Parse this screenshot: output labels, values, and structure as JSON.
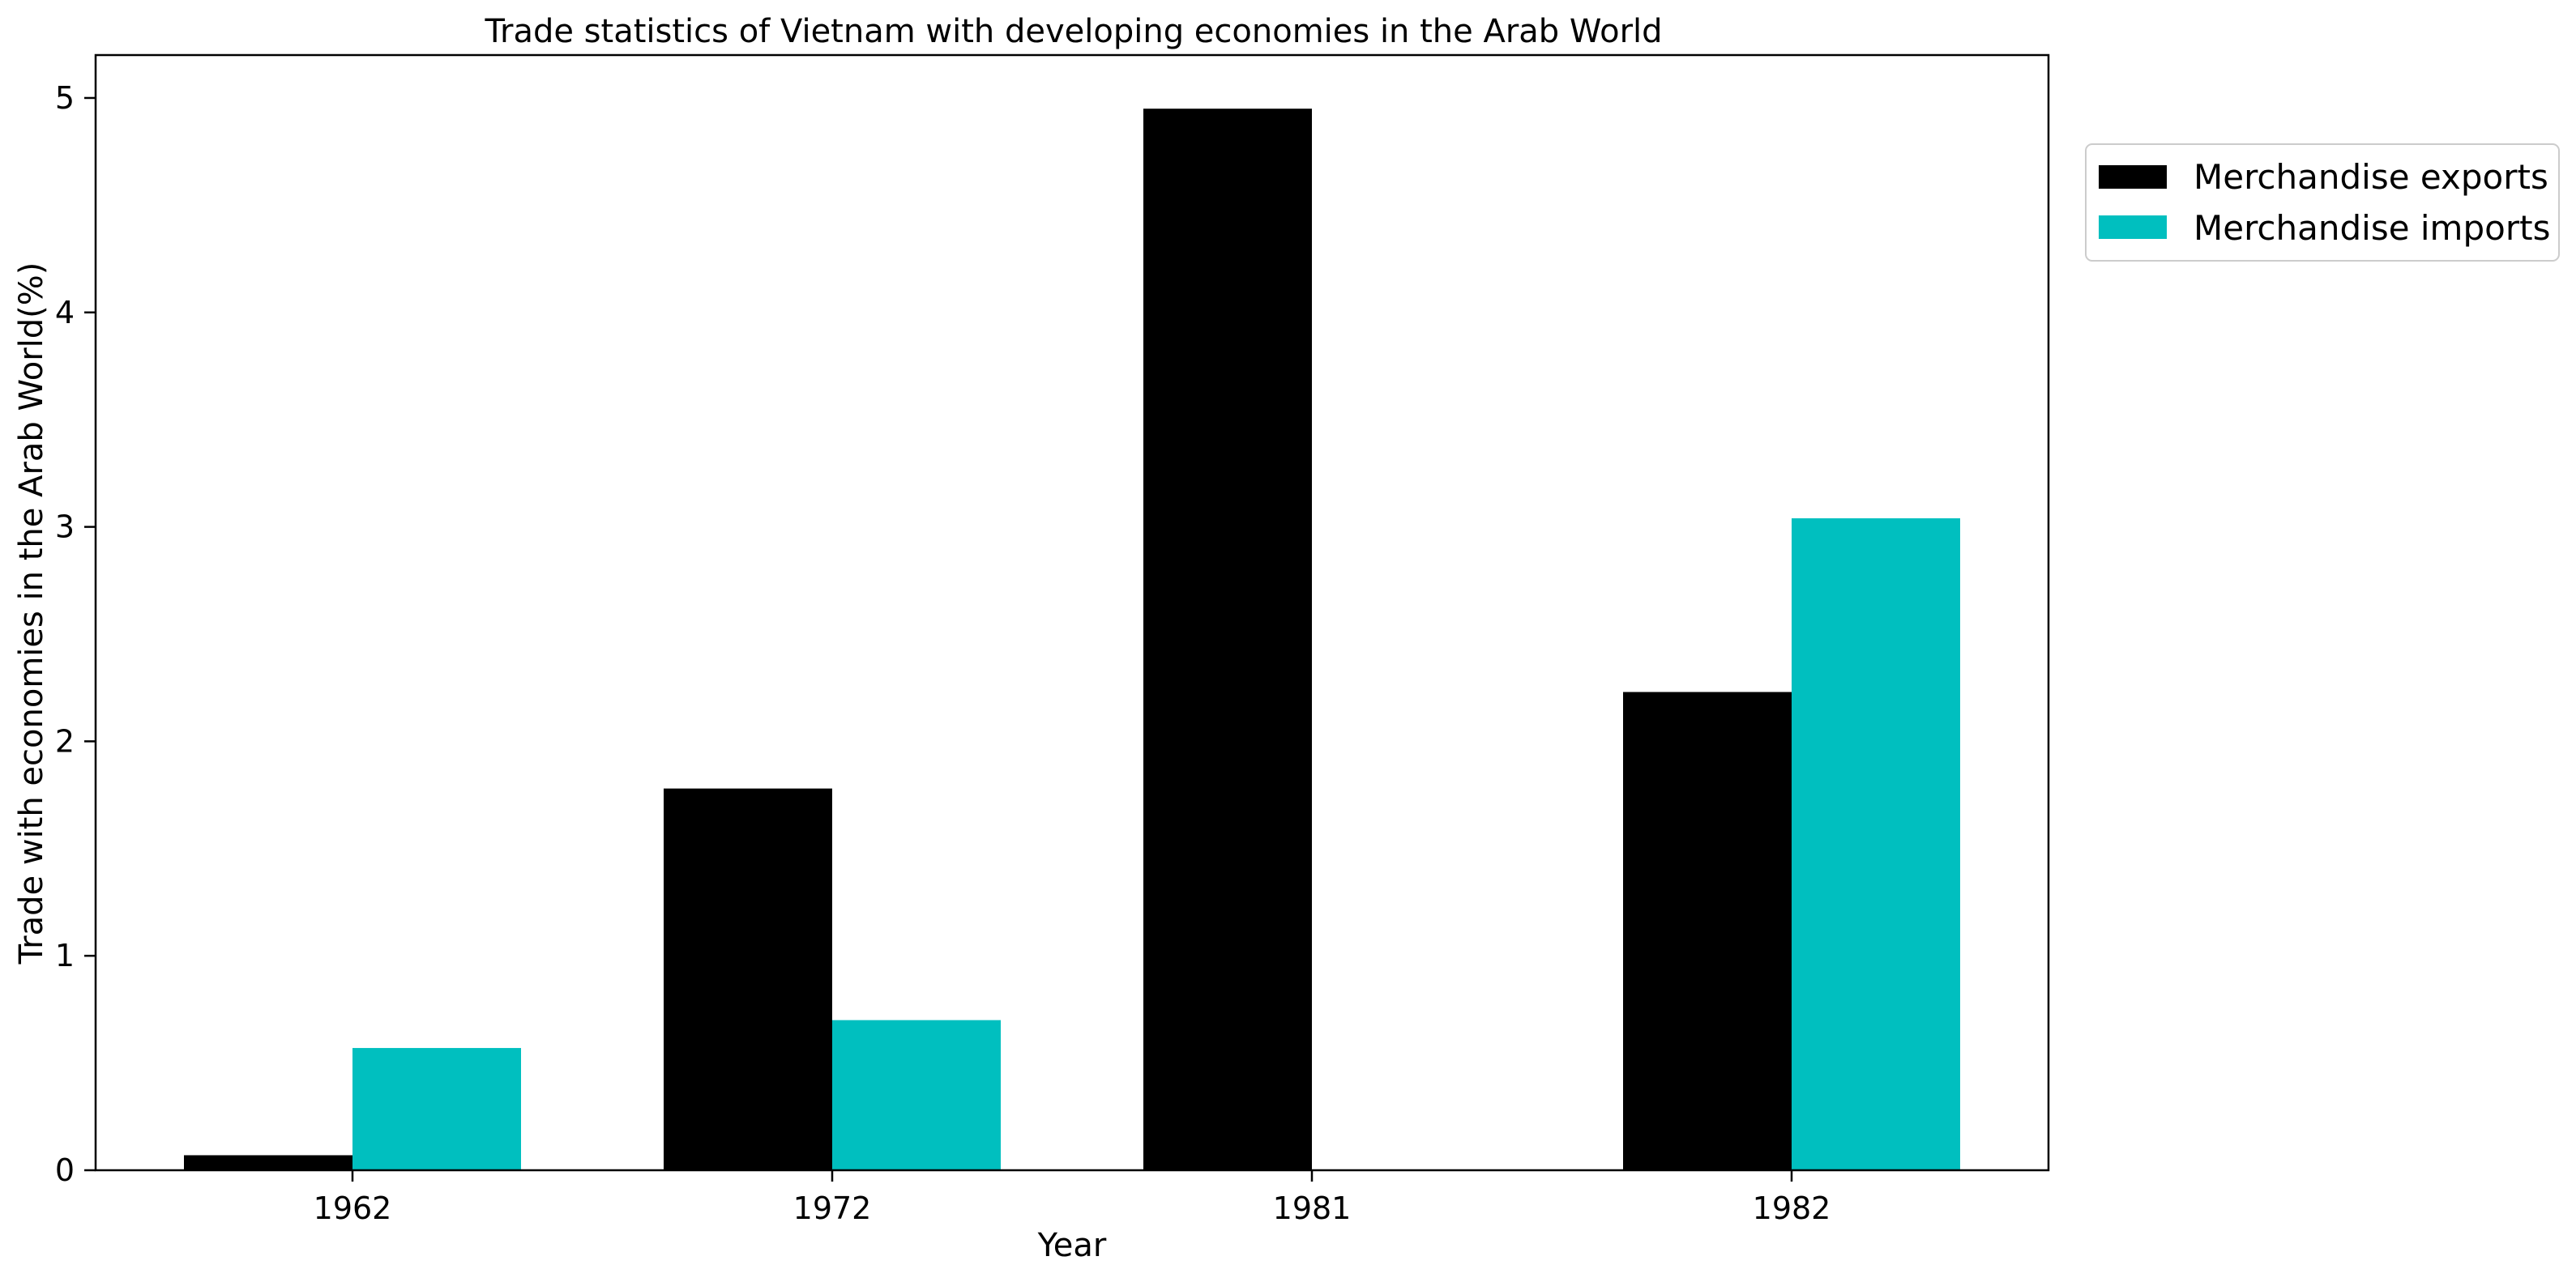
{
  "chart_data": {
    "type": "bar",
    "title": "Trade statistics of Vietnam with developing economies in the Arab World",
    "xlabel": "Year",
    "ylabel": "Trade with economies in the Arab World(%)",
    "categories": [
      "1962",
      "1972",
      "1981",
      "1982"
    ],
    "series": [
      {
        "name": "Merchandise exports",
        "color": "#000000",
        "values": [
          0.07,
          1.78,
          4.95,
          2.23
        ]
      },
      {
        "name": "Merchandise imports",
        "color": "#00bfbf",
        "values": [
          0.57,
          0.7,
          null,
          3.04
        ]
      }
    ],
    "ylim": [
      0,
      5.2
    ],
    "yticks": [
      0,
      1,
      2,
      3,
      4,
      5
    ],
    "grid": false,
    "legend_position": "outside-top-right"
  }
}
